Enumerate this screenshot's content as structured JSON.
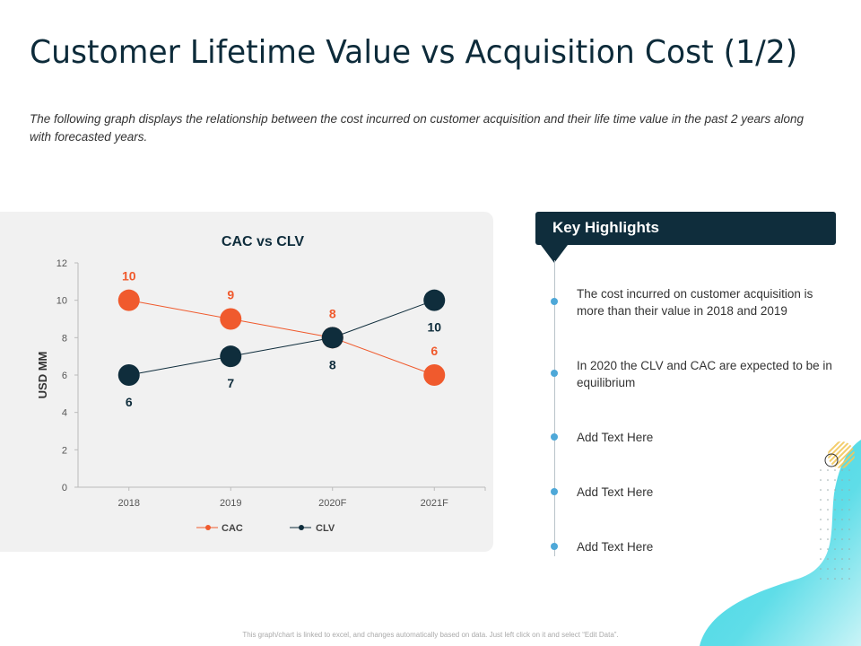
{
  "slide": {
    "title": "Customer Lifetime Value vs Acquisition Cost (1/2)",
    "subtitle": "The following graph displays the relationship between the cost incurred on customer acquisition and their life time value in the past 2 years along with forecasted years.",
    "footer": "This graph/chart is linked to excel, and changes automatically based on data. Just left click on it and select “Edit Data”."
  },
  "highlights": {
    "title": "Key Highlights",
    "items": [
      "The cost incurred on customer acquisition is more than their value in 2018 and 2019",
      "In 2020 the CLV and CAC are expected to be in equilibrium",
      "Add Text Here",
      "Add Text Here",
      "Add Text Here"
    ]
  },
  "colors": {
    "cac": "#f05a2d",
    "clv": "#0f2d3c",
    "accent_dot": "#4ea8d8",
    "panel_bg": "#f1f1f1"
  },
  "chart_data": {
    "type": "line",
    "title": "CAC vs CLV",
    "xlabel": "",
    "ylabel": "USD MM",
    "categories": [
      "2018",
      "2019",
      "2020F",
      "2021F"
    ],
    "series": [
      {
        "name": "CAC",
        "values": [
          10,
          9,
          8,
          6
        ],
        "color": "#f05a2d"
      },
      {
        "name": "CLV",
        "values": [
          6,
          7,
          8,
          10
        ],
        "color": "#0f2d3c"
      }
    ],
    "ylim": [
      0,
      12
    ],
    "yticks": [
      "0",
      "2",
      "4",
      "6",
      "8",
      "10",
      "12"
    ],
    "grid": false,
    "legend_position": "bottom",
    "data_labels": true
  }
}
